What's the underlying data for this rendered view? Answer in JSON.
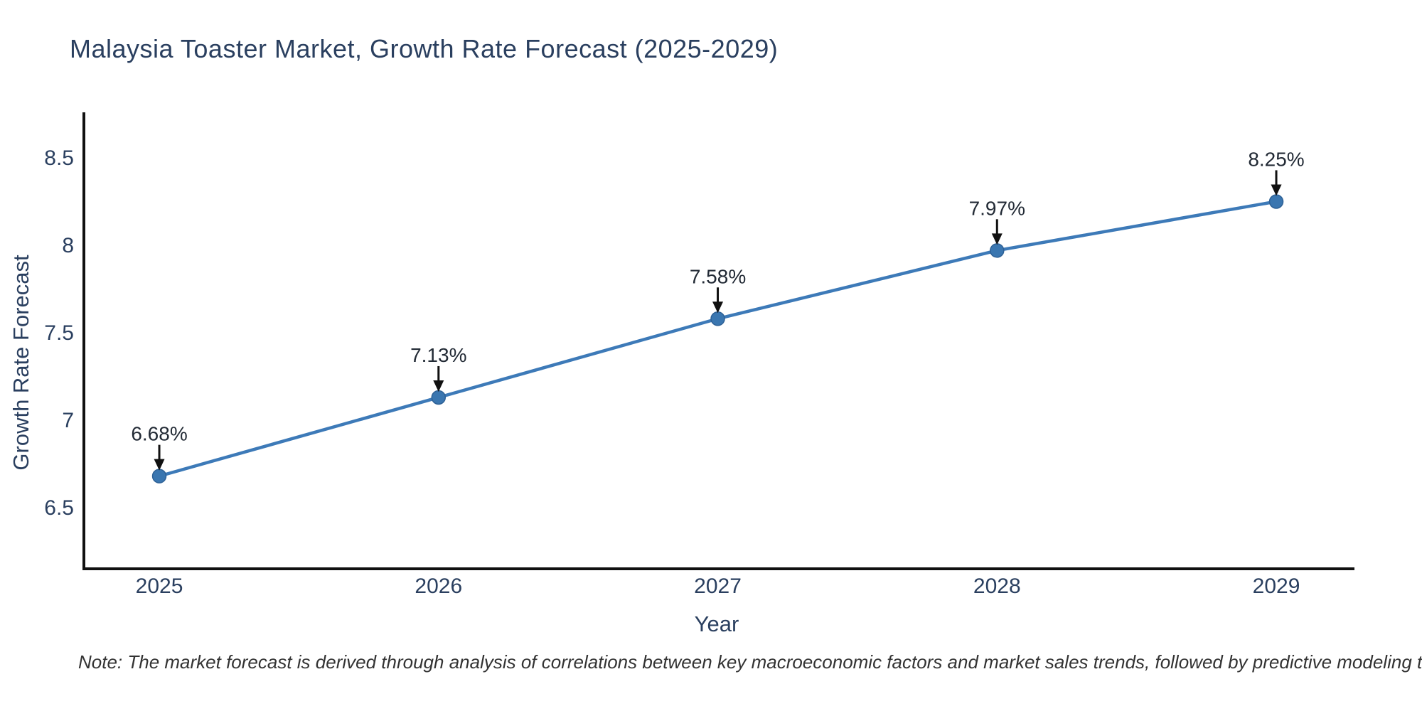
{
  "chart_data": {
    "type": "line",
    "title": "Malaysia Toaster Market, Growth Rate Forecast (2025-2029)",
    "xlabel": "Year",
    "ylabel": "Growth Rate Forecast",
    "x": [
      2025,
      2026,
      2027,
      2028,
      2029
    ],
    "series": [
      {
        "name": "Growth Rate Forecast",
        "values": [
          6.68,
          7.13,
          7.58,
          7.97,
          8.25
        ],
        "point_labels": [
          "6.68%",
          "7.13%",
          "7.58%",
          "7.97%",
          "8.25%"
        ]
      }
    ],
    "x_tick_labels": [
      "2025",
      "2026",
      "2027",
      "2028",
      "2029"
    ],
    "y_ticks": [
      6.5,
      7,
      7.5,
      8,
      8.5
    ],
    "y_tick_labels": [
      "6.5",
      "7",
      "7.5",
      "8",
      "8.5"
    ],
    "xlim": [
      2024.73,
      2029.28
    ],
    "ylim": [
      6.15,
      8.76
    ],
    "grid": false,
    "legend_position": "none",
    "line_color": "#3d7ab8",
    "marker_color": "#3a76b0",
    "marker_edge_color": "#2e6196",
    "arrow_color": "#111111",
    "axis_color": "#111111",
    "text_color": "#2a3f5f"
  },
  "note": {
    "text": "Note: The market forecast is derived through analysis of correlations between key macroeconomic factors and market sales trends, followed by predictive modeling to project future sales"
  }
}
